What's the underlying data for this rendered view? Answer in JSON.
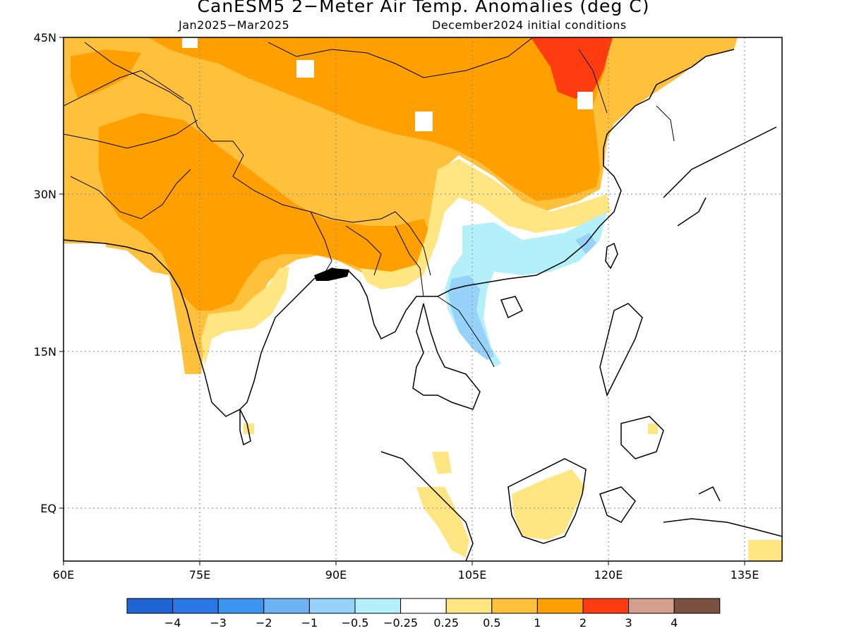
{
  "title": "CanESM5 2−Meter Air Temp. Anomalies (deg C)",
  "subtitle_left": "Jan2025−Mar2025",
  "subtitle_right": "December2024 initial conditions",
  "map": {
    "lon_ticks": [
      "60E",
      "75E",
      "90E",
      "105E",
      "120E",
      "135E"
    ],
    "lat_ticks": [
      "45N",
      "30N",
      "15N",
      "EQ"
    ],
    "lon_range": [
      60,
      139
    ],
    "lat_range": [
      -5,
      45
    ]
  },
  "colorbar": {
    "labels": [
      "−4",
      "−3",
      "−2",
      "−1",
      "−0.5",
      "−0.25",
      "0.25",
      "0.5",
      "1",
      "2",
      "3",
      "4"
    ],
    "colors": [
      "#1e64d2",
      "#2a78e6",
      "#3c96f0",
      "#6eb4f5",
      "#96d2fa",
      "#b4f0fa",
      "#ffffff",
      "#ffe682",
      "#ffc03c",
      "#ffa000",
      "#ff3c0f",
      "#d2a08c",
      "#7a5040"
    ]
  }
}
